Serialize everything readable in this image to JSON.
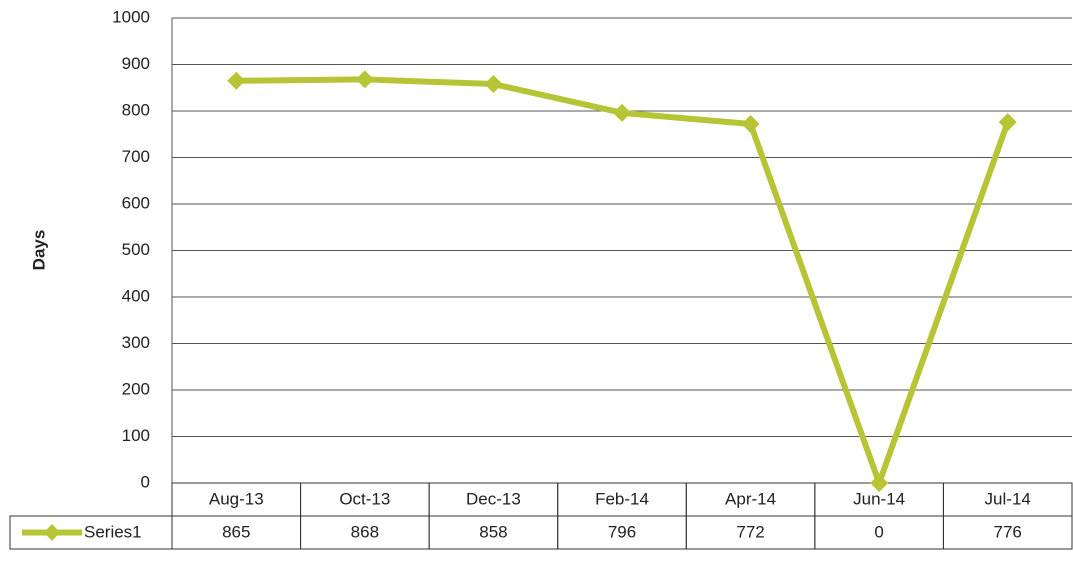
{
  "chart_data": {
    "type": "line",
    "y_label": "Days",
    "categories": [
      "Aug-13",
      "Oct-13",
      "Dec-13",
      "Feb-14",
      "Apr-14",
      "Jun-14",
      "Jul-14"
    ],
    "series": [
      {
        "name": "Series1",
        "color": "#b7c436",
        "values": [
          865,
          868,
          858,
          796,
          772,
          0,
          776
        ]
      }
    ],
    "ylim": [
      0,
      1000
    ],
    "yticks": [
      0,
      100,
      200,
      300,
      400,
      500,
      600,
      700,
      800,
      900,
      1000
    ],
    "grid": true,
    "data_table": true
  }
}
